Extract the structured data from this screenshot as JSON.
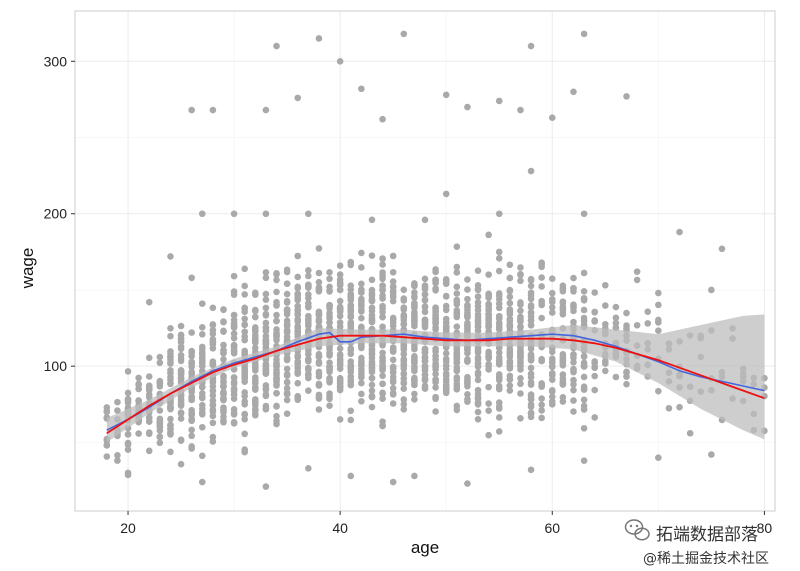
{
  "chart_data": {
    "type": "scatter",
    "title": "",
    "xlabel": "age",
    "ylabel": "wage",
    "xlim": [
      15,
      81
    ],
    "ylim": [
      5,
      333
    ],
    "x_ticks": [
      20,
      40,
      60,
      80
    ],
    "y_ticks": [
      100,
      200,
      300
    ],
    "grid": true,
    "colors": {
      "points": "#a9a9a9",
      "band": "#bdbdbd",
      "blue_line": "#4466dd",
      "red_line": "#ee1111",
      "grid_major": "#ebebeb",
      "grid_minor": "#f5f5f5",
      "panel_border": "#cccccc"
    },
    "scatter": {
      "x_range": [
        18,
        80
      ],
      "description_points": [
        [
          26,
          268
        ],
        [
          34,
          310
        ],
        [
          38,
          315
        ],
        [
          40,
          300
        ],
        [
          46,
          318
        ],
        [
          58,
          310
        ],
        [
          63,
          318
        ],
        [
          28,
          268
        ],
        [
          33,
          268
        ],
        [
          36,
          276
        ],
        [
          42,
          282
        ],
        [
          44,
          262
        ],
        [
          50,
          278
        ],
        [
          52,
          270
        ],
        [
          55,
          274
        ],
        [
          57,
          268
        ],
        [
          60,
          263
        ],
        [
          62,
          280
        ],
        [
          67,
          277
        ],
        [
          58,
          228
        ],
        [
          50,
          213
        ],
        [
          27,
          200
        ],
        [
          30,
          200
        ],
        [
          33,
          200
        ],
        [
          37,
          200
        ],
        [
          43,
          196
        ],
        [
          48,
          196
        ],
        [
          55,
          200
        ],
        [
          63,
          200
        ],
        [
          72,
          188
        ],
        [
          76,
          177
        ],
        [
          68,
          162
        ],
        [
          70,
          148
        ],
        [
          75,
          150
        ],
        [
          74,
          120
        ],
        [
          78,
          90
        ],
        [
          73,
          56
        ],
        [
          79,
          58
        ],
        [
          78,
          95
        ],
        [
          80,
          86
        ],
        [
          20,
          30
        ],
        [
          18,
          48
        ],
        [
          27,
          24
        ],
        [
          33,
          21
        ],
        [
          45,
          24
        ],
        [
          52,
          23
        ],
        [
          58,
          32
        ],
        [
          63,
          38
        ],
        [
          70,
          40
        ],
        [
          75,
          42
        ],
        [
          37,
          33
        ],
        [
          41,
          28
        ],
        [
          47,
          28
        ],
        [
          22,
          142
        ],
        [
          24,
          172
        ],
        [
          26,
          158
        ]
      ]
    },
    "series": [
      {
        "x": [
          18,
          20,
          22,
          24,
          26,
          28,
          30,
          32,
          34,
          36,
          38,
          39,
          40,
          41,
          42,
          44,
          46,
          48,
          50,
          52,
          54,
          56,
          58,
          60,
          62,
          64,
          66,
          68,
          70,
          72,
          74,
          76,
          78,
          80
        ],
        "y": [
          58,
          65,
          73,
          82,
          90,
          97,
          102,
          106,
          110,
          116,
          121,
          122,
          116,
          116,
          119,
          120,
          121,
          119,
          118,
          117,
          118,
          119,
          120,
          121,
          120,
          117,
          113,
          108,
          103,
          97,
          93,
          90,
          87,
          84
        ]
      },
      {
        "x": [
          18,
          20,
          22,
          24,
          26,
          28,
          30,
          32,
          34,
          36,
          38,
          40,
          42,
          44,
          46,
          48,
          50,
          52,
          54,
          56,
          58,
          60,
          62,
          64,
          66,
          68,
          70,
          72,
          74,
          76,
          78,
          80
        ],
        "y": [
          56,
          65,
          74,
          82,
          89,
          96,
          101,
          105,
          110,
          114,
          118,
          120,
          120,
          120,
          119,
          118,
          117,
          117,
          117,
          118,
          118,
          118,
          117,
          115,
          112,
          108,
          104,
          99,
          94,
          89,
          84,
          79
        ]
      }
    ],
    "confidence_band": {
      "x": [
        18,
        22,
        26,
        30,
        34,
        38,
        42,
        46,
        50,
        54,
        58,
        62,
        66,
        70,
        74,
        78,
        80
      ],
      "lower": [
        50,
        69,
        86,
        99,
        107,
        113,
        115,
        115,
        113,
        113,
        113,
        111,
        103,
        89,
        72,
        58,
        52
      ],
      "upper": [
        66,
        78,
        93,
        105,
        113,
        125,
        124,
        124,
        122,
        122,
        124,
        127,
        124,
        121,
        127,
        133,
        134
      ]
    }
  },
  "watermark": {
    "line1": "拓端数据部落",
    "line2": "@稀土掘金技术社区"
  }
}
